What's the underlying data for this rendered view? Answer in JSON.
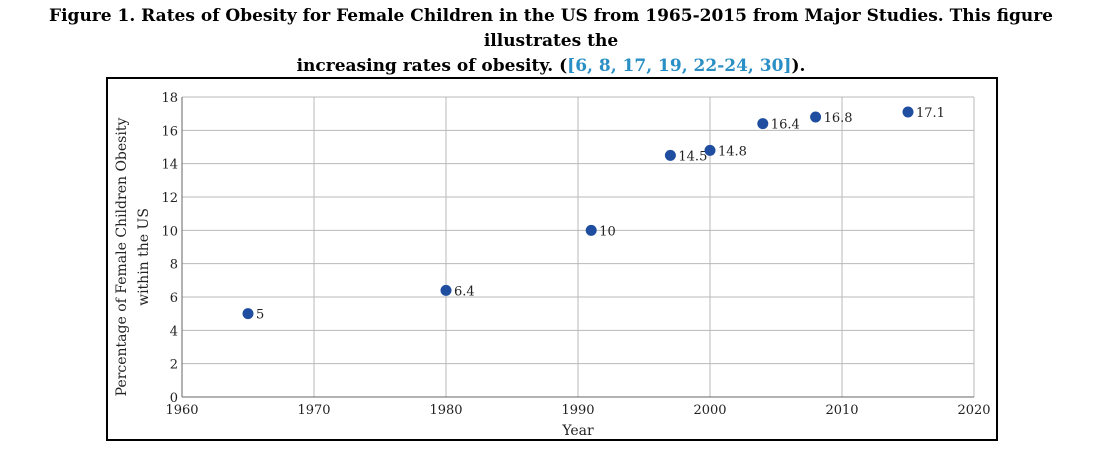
{
  "caption": {
    "line1": "Figure 1. Rates of Obesity for Female Children in the US from 1965-2015 from Major Studies. This figure illustrates the",
    "line2_prefix": "increasing rates of obesity. (",
    "citations": "[6, 8, 17, 19, 22-24, 30]",
    "line2_suffix": ")."
  },
  "chart_data": {
    "type": "scatter",
    "title": "",
    "xlabel": "Year",
    "ylabel_lines": [
      "Percentage of Female Children Obesity",
      "within the US"
    ],
    "xlim": [
      1960,
      2020
    ],
    "ylim": [
      0,
      18
    ],
    "xticks": [
      1960,
      1970,
      1980,
      1990,
      2000,
      2010,
      2020
    ],
    "yticks": [
      0,
      2,
      4,
      6,
      8,
      10,
      12,
      14,
      16,
      18
    ],
    "grid": true,
    "legend": "none",
    "marker_color": "#1f4ea1",
    "points": [
      {
        "x": 1965,
        "y": 5,
        "label": "5"
      },
      {
        "x": 1980,
        "y": 6.4,
        "label": "6.4"
      },
      {
        "x": 1991,
        "y": 10,
        "label": "10"
      },
      {
        "x": 1997,
        "y": 14.5,
        "label": "14.5"
      },
      {
        "x": 2000,
        "y": 14.8,
        "label": "14.8"
      },
      {
        "x": 2004,
        "y": 16.4,
        "label": "16.4"
      },
      {
        "x": 2008,
        "y": 16.8,
        "label": "16.8"
      },
      {
        "x": 2015,
        "y": 17.1,
        "label": "17.1"
      }
    ]
  }
}
